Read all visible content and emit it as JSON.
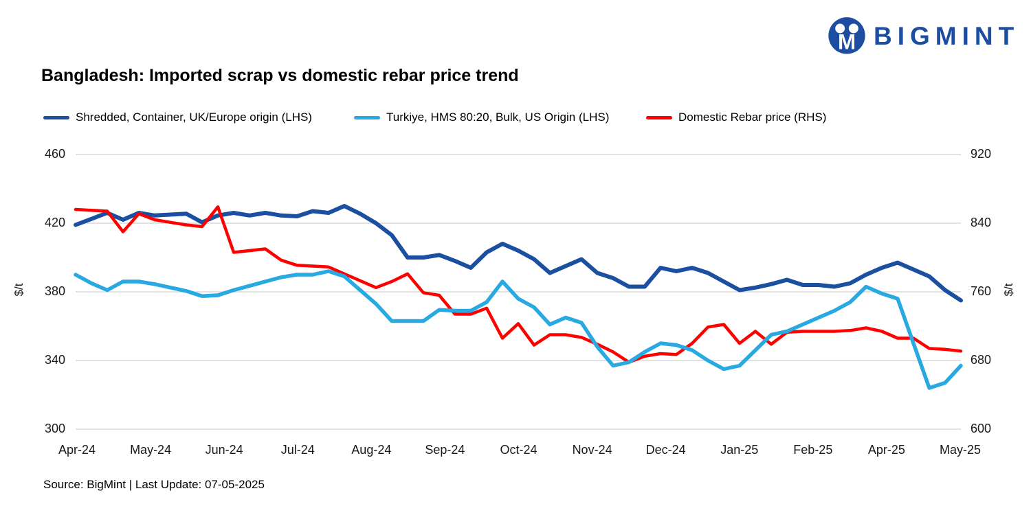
{
  "logo": {
    "text": "BIGMINT",
    "color": "#1C4DA1"
  },
  "title": "Bangladesh: Imported scrap vs domestic rebar price trend",
  "footer": {
    "source": "Source: BigMint | Last Update: 07-05-2025"
  },
  "colors": {
    "grid": "#D9D9D9",
    "text": "#000000"
  },
  "chart_data": {
    "type": "line",
    "title": "Bangladesh: Imported scrap vs domestic rebar price trend",
    "grid": "horizontal",
    "legend_position": "top",
    "x_axis": {
      "labels": [
        "Apr-24",
        "May-24",
        "Jun-24",
        "Jul-24",
        "Aug-24",
        "Sep-24",
        "Oct-24",
        "Nov-24",
        "Dec-24",
        "Jan-25",
        "Feb-25",
        "Apr-25",
        "May-25"
      ]
    },
    "left_axis": {
      "label": "$/t",
      "ticks": [
        460,
        420,
        380,
        340,
        300
      ],
      "range": [
        300,
        460
      ]
    },
    "right_axis": {
      "label": "$/t",
      "ticks": [
        920,
        840,
        760,
        680,
        600
      ],
      "range": [
        600,
        920
      ]
    },
    "series": [
      {
        "name": "Shredded, Container, UK/Europe origin (LHS)",
        "axis": "left",
        "color": "#1B4F9F",
        "width": 6,
        "values": [
          419,
          422.5,
          426,
          422,
          426,
          424.5,
          425,
          425.5,
          420.5,
          424.5,
          426,
          424.5,
          426,
          424.5,
          424,
          427,
          426,
          430,
          425.5,
          420,
          413,
          400,
          400,
          401.5,
          398,
          394,
          403,
          408,
          404,
          399,
          391,
          395,
          399,
          391,
          388,
          383,
          383,
          394,
          392,
          394,
          391,
          386,
          381,
          382.5,
          384.5,
          387,
          384,
          384,
          383,
          385,
          390,
          394,
          397,
          393,
          389,
          381,
          375
        ]
      },
      {
        "name": "Turkiye, HMS 80:20, Bulk, US Origin (LHS)",
        "axis": "left",
        "color": "#29A9E1",
        "width": 5.5,
        "values": [
          390,
          385,
          381,
          386,
          386,
          384.5,
          382.5,
          380.5,
          377.5,
          378,
          381,
          383.5,
          386,
          388.5,
          390,
          390,
          392,
          389,
          381,
          373,
          363,
          363,
          363,
          369.5,
          369,
          369,
          374,
          386,
          376,
          371,
          361,
          365,
          362,
          348,
          337,
          339,
          345,
          350,
          349,
          346,
          340,
          335,
          337,
          346,
          355,
          357,
          361,
          365,
          369,
          374,
          383,
          379,
          376,
          350,
          324,
          327,
          337
        ]
      },
      {
        "name": "Domestic Rebar price (RHS)",
        "axis": "right",
        "color": "#FF0000",
        "width": 4.5,
        "values": [
          856,
          855,
          854,
          830,
          851,
          844,
          841,
          838,
          836,
          859,
          806,
          808,
          810,
          797,
          791,
          790,
          789,
          781,
          773,
          765,
          772,
          781,
          759,
          756,
          734,
          734,
          741,
          706,
          723,
          698,
          710,
          710,
          707,
          699,
          690,
          678,
          685,
          688,
          687,
          700,
          719,
          722,
          700,
          714,
          699,
          713,
          714,
          714,
          714,
          715,
          718,
          714,
          706,
          706,
          694,
          693,
          691
        ]
      }
    ]
  }
}
